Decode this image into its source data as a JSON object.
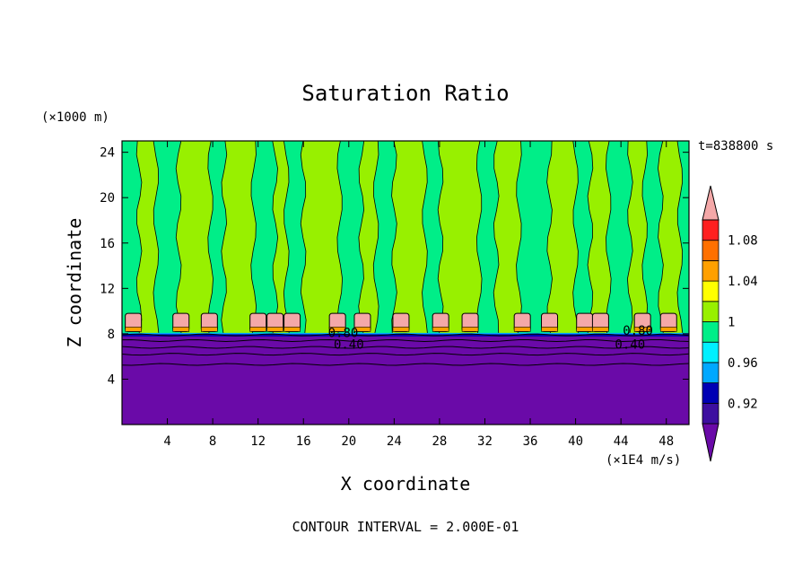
{
  "chart_data": {
    "type": "heatmap",
    "title": "Saturation Ratio",
    "xlabel": "X coordinate",
    "ylabel": "Z coordinate",
    "x_unit": "(×1E4 m/s)",
    "y_unit": "(×1000 m)",
    "time_label": "t=838800 s",
    "footer": "CONTOUR INTERVAL = 2.000E-01",
    "xlim": [
      0,
      50
    ],
    "ylim": [
      0,
      25
    ],
    "x_ticks": [
      "4",
      "8",
      "12",
      "16",
      "20",
      "24",
      "28",
      "32",
      "36",
      "40",
      "44",
      "48"
    ],
    "y_ticks": [
      "4",
      "8",
      "12",
      "16",
      "20",
      "24"
    ],
    "contour_labels": [
      "0.40",
      "0.40",
      "0.80",
      "0.80"
    ],
    "colorbar": {
      "levels": [
        {
          "label": "",
          "color": "#6a0aa8"
        },
        {
          "label": "0.92",
          "color": "#3d0fa0"
        },
        {
          "label": "",
          "color": "#0000b4"
        },
        {
          "label": "0.96",
          "color": "#00a8ff"
        },
        {
          "label": "",
          "color": "#00f0ff"
        },
        {
          "label": "1",
          "color": "#00ee88"
        },
        {
          "label": "",
          "color": "#98f000"
        },
        {
          "label": "1.04",
          "color": "#ffff00"
        },
        {
          "label": "",
          "color": "#ffa000"
        },
        {
          "label": "1.08",
          "color": "#ff7000"
        },
        {
          "label": "",
          "color": "#ff2020"
        },
        {
          "label": "",
          "color": "#f4a8a8"
        }
      ]
    },
    "dry_layer": {
      "z_top": 8,
      "value_below": "< 0.92"
    },
    "cloud_blobs_x": [
      1.0,
      5.2,
      7.7,
      12.0,
      13.5,
      15.0,
      19.0,
      21.2,
      24.6,
      28.1,
      30.7,
      35.3,
      37.7,
      40.8,
      42.2,
      45.9,
      48.2
    ],
    "plumes": [
      {
        "x0": 1.5,
        "x1": 3.0,
        "color": "#98f000"
      },
      {
        "x0": 5.0,
        "x1": 7.8,
        "color": "#98f000"
      },
      {
        "x0": 9.0,
        "x1": 11.6,
        "color": "#98f000"
      },
      {
        "x0": 13.5,
        "x1": 14.5,
        "color": "#98f000"
      },
      {
        "x0": 16.0,
        "x1": 19.2,
        "color": "#98f000"
      },
      {
        "x0": 21.1,
        "x1": 22.4,
        "color": "#98f000"
      },
      {
        "x0": 24.0,
        "x1": 26.7,
        "color": "#98f000"
      },
      {
        "x0": 28.1,
        "x1": 31.5,
        "color": "#98f000"
      },
      {
        "x0": 33.0,
        "x1": 35.0,
        "color": "#98f000"
      },
      {
        "x0": 37.7,
        "x1": 40.0,
        "color": "#98f000"
      },
      {
        "x0": 41.3,
        "x1": 42.9,
        "color": "#98f000"
      },
      {
        "x0": 44.8,
        "x1": 46.1,
        "color": "#98f000"
      },
      {
        "x0": 47.5,
        "x1": 49.2,
        "color": "#98f000"
      }
    ]
  }
}
